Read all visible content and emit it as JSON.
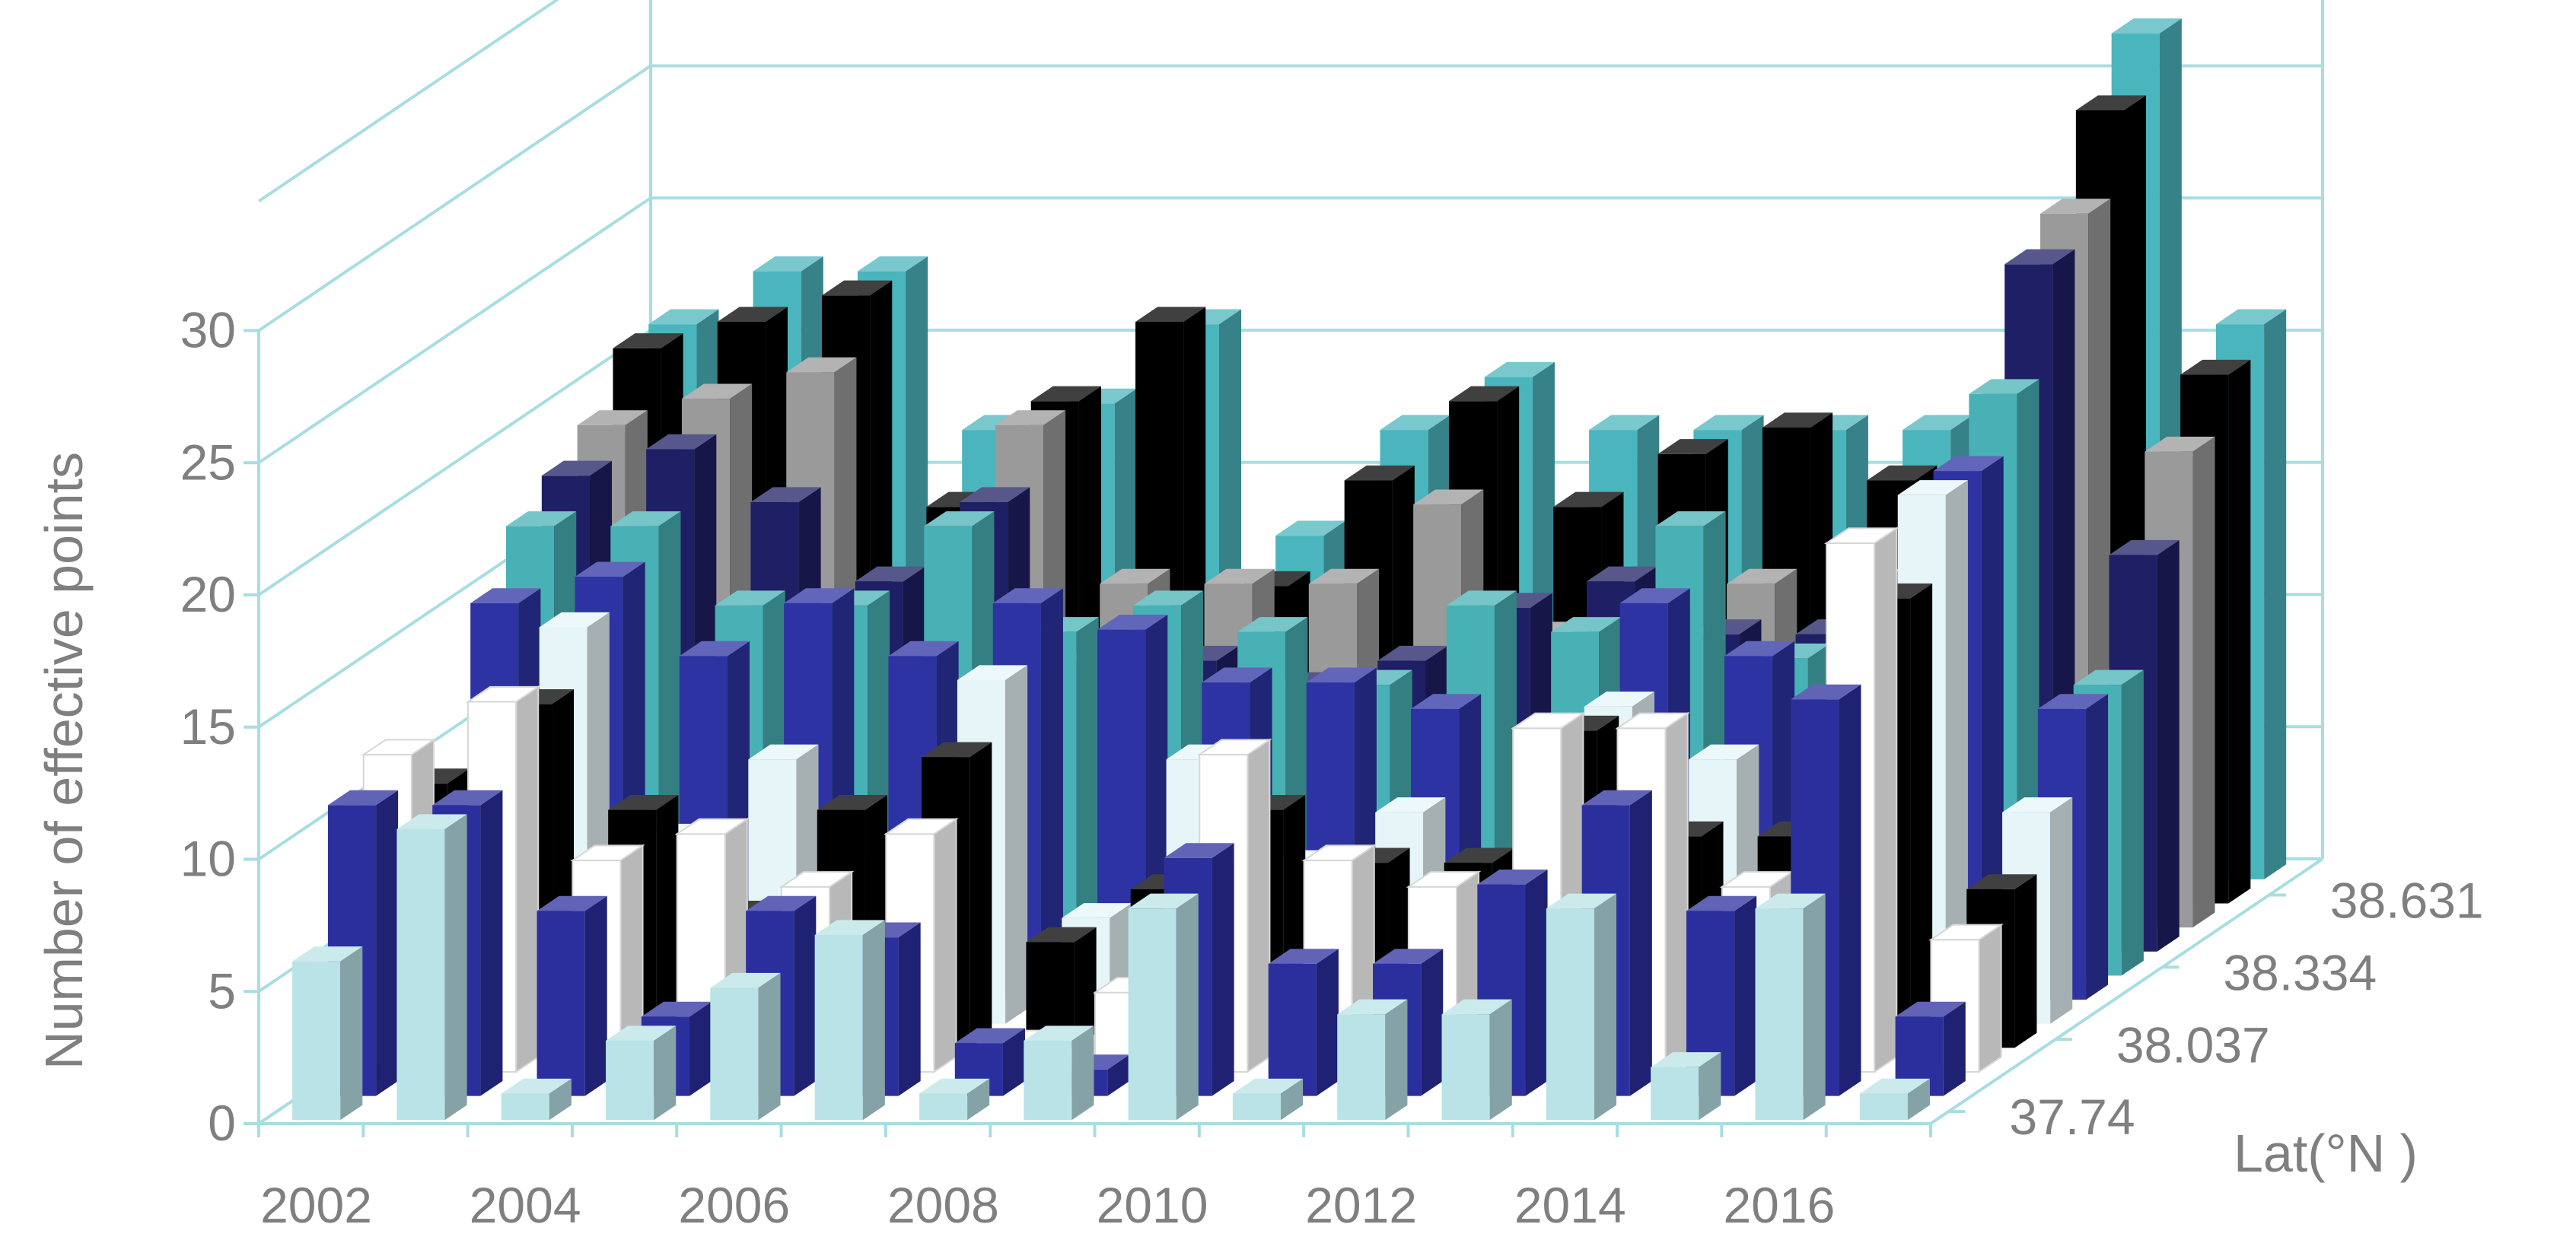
{
  "chart_data": {
    "type": "bar",
    "projection": "3d",
    "ylabel": "Number of effective points",
    "depth_axis_label": "Lat(°N )",
    "y_ticks": [
      "0",
      "5",
      "10",
      "15",
      "20",
      "25",
      "30"
    ],
    "ylim": [
      0,
      30
    ],
    "years": [
      2002,
      2003,
      2004,
      2005,
      2006,
      2007,
      2008,
      2009,
      2010,
      2011,
      2012,
      2013,
      2014,
      2015,
      2016,
      2017
    ],
    "x_tick_labels": [
      "2002",
      "2004",
      "2006",
      "2008",
      "2010",
      "2012",
      "2014",
      "2016"
    ],
    "depth_tick_labels": [
      "37.74",
      "38.037",
      "38.334",
      "38.631"
    ],
    "grid": true,
    "series": [
      {
        "color": "#b9e3e6",
        "values": [
          6,
          11,
          1,
          3,
          5,
          7,
          1,
          3,
          8,
          1,
          4,
          4,
          8,
          2,
          8,
          1
        ]
      },
      {
        "color": "#2b2f9e",
        "values": [
          11,
          11,
          7,
          3,
          7,
          6,
          2,
          1,
          9,
          5,
          5,
          8,
          11,
          7,
          15,
          3
        ]
      },
      {
        "color": "#ffffff",
        "values": [
          12,
          14,
          8,
          9,
          7,
          9,
          1,
          3,
          12,
          8,
          7,
          13,
          13,
          7,
          20,
          5
        ]
      },
      {
        "color": "#000000",
        "values": [
          10,
          13,
          9,
          5,
          9,
          11,
          4,
          6,
          9,
          7,
          7,
          12,
          8,
          8,
          17,
          6
        ]
      },
      {
        "color": "#e6f5f7",
        "values": [
          7,
          15,
          7,
          10,
          6,
          13,
          4,
          10,
          6,
          8,
          6,
          12,
          10,
          8,
          20,
          8
        ]
      },
      {
        "color": "#2d33a3",
        "values": [
          15,
          16,
          13,
          15,
          13,
          15,
          14,
          12,
          12,
          11,
          10,
          15,
          13,
          14,
          20,
          11
        ]
      },
      {
        "color": "#48b1b5",
        "values": [
          17,
          17,
          14,
          14,
          17,
          13,
          14,
          13,
          11,
          14,
          13,
          17,
          12,
          12,
          22,
          11
        ]
      },
      {
        "color": "#1f1f66",
        "values": [
          18,
          19,
          17,
          14,
          17,
          11,
          11,
          10,
          11,
          13,
          14,
          12,
          12,
          15,
          26,
          15
        ]
      },
      {
        "color": "#9a9a9a",
        "values": [
          19,
          20,
          21,
          13,
          19,
          13,
          13,
          13,
          16,
          11,
          12,
          13,
          13,
          15,
          27,
          18
        ]
      },
      {
        "color": "#000000",
        "values": [
          21,
          22,
          23,
          15,
          19,
          22,
          12,
          16,
          19,
          15,
          17,
          18,
          16,
          19,
          30,
          20
        ]
      },
      {
        "color": "#4bb5bd",
        "values": [
          21,
          23,
          23,
          17,
          18,
          21,
          13,
          17,
          19,
          17,
          17,
          17,
          17,
          20,
          32,
          21
        ]
      }
    ]
  }
}
